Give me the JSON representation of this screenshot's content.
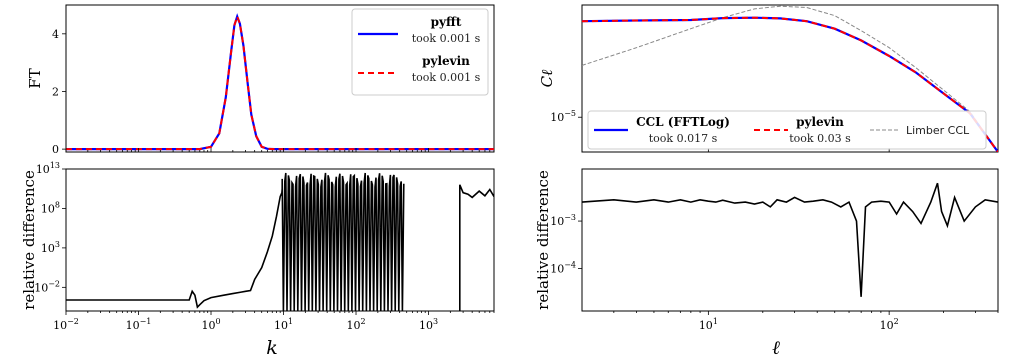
{
  "chart_data": [
    {
      "panel": "top-left",
      "type": "line",
      "ylabel": "FT",
      "xscale": "log",
      "xlim": [
        0.01,
        8000
      ],
      "ylim": [
        -0.1,
        5.0
      ],
      "yticks": [
        "0",
        "2",
        "4"
      ],
      "legend_position": "top-right",
      "series": [
        {
          "name": "pyfft",
          "note": "took 0.001 s",
          "color": "#0000ff",
          "style": "solid"
        },
        {
          "name": "pylevin",
          "note": "took 0.001 s",
          "color": "#ff0000",
          "style": "dashed"
        }
      ],
      "x": [
        0.7,
        1.0,
        1.3,
        1.6,
        1.9,
        2.1,
        2.3,
        2.5,
        2.8,
        3.2,
        3.6,
        4.2,
        5.0,
        6.0,
        7.5
      ],
      "y": [
        0.0,
        0.08,
        0.55,
        1.8,
        3.4,
        4.3,
        4.6,
        4.35,
        3.6,
        2.3,
        1.2,
        0.45,
        0.08,
        0.01,
        0.0
      ]
    },
    {
      "panel": "bottom-left",
      "type": "line",
      "ylabel": "relative difference",
      "xlabel": "k",
      "xscale": "log",
      "yscale": "log",
      "xlim": [
        0.01,
        8000
      ],
      "ylim_log10": [
        -5,
        13
      ],
      "xticks": [
        "10−2",
        "10−1",
        "100",
        "101",
        "102",
        "103"
      ],
      "yticks": [
        "1013",
        "108",
        "103",
        "10−2"
      ],
      "series": [
        {
          "name": "",
          "color": "#000000"
        }
      ],
      "x": [
        0.01,
        0.5,
        0.55,
        0.6,
        0.65,
        0.7,
        0.8,
        1.0,
        1.5,
        2.0,
        2.6,
        3.0,
        3.5,
        4.0,
        5.0,
        6.0,
        7.0,
        8.0,
        9.0,
        9.5,
        9.6
      ],
      "y_log10": [
        -3.6,
        -3.6,
        -2.5,
        -3.0,
        -4.5,
        -4.2,
        -3.7,
        -3.3,
        -3.0,
        -2.8,
        -2.6,
        -2.5,
        -2.4,
        -1.0,
        0.5,
        2.5,
        4.5,
        7.0,
        9.5,
        10.0,
        10.5
      ],
      "spike_region": {
        "x_from": 9.6,
        "x_to": 420,
        "peak_log10": [
          11.0,
          12.5
        ],
        "floor_log10": -5
      },
      "tail": {
        "x": [
          2700,
          3000,
          3500,
          4000,
          5000,
          6000,
          7000,
          8000
        ],
        "y_log10": [
          11.0,
          10.0,
          9.8,
          9.4,
          10.2,
          9.6,
          10.4,
          9.5
        ]
      }
    },
    {
      "panel": "top-right",
      "type": "line",
      "ylabel": "Cℓ",
      "xscale": "log",
      "yscale": "log",
      "xlim": [
        2,
        400
      ],
      "ylim": [
        2e-06,
        0.0018
      ],
      "yticks": [
        "10−5"
      ],
      "legend_position": "bottom",
      "series": [
        {
          "name": "CCL (FFTLog)",
          "note": "took 0.017 s",
          "color": "#0000ff",
          "style": "solid"
        },
        {
          "name": "pylevin",
          "note": "took 0.03 s",
          "color": "#ff0000",
          "style": "dashed"
        },
        {
          "name": "Limber CCL",
          "note": "",
          "color": "#888888",
          "style": "dashed"
        }
      ],
      "x": [
        2,
        4,
        8,
        12,
        18,
        25,
        35,
        50,
        70,
        100,
        140,
        200,
        280,
        400
      ],
      "ccl": [
        0.00085,
        0.00088,
        0.0009,
        0.00098,
        0.001,
        0.00097,
        0.00085,
        0.0006,
        0.00035,
        0.00017,
        8e-05,
        3e-05,
        1.2e-05,
        2e-06
      ],
      "limber": [
        0.00011,
        0.00025,
        0.0006,
        0.001,
        0.0015,
        0.0017,
        0.0016,
        0.0011,
        0.00055,
        0.00025,
        0.0001,
        3.5e-05,
        1.3e-05,
        2e-06
      ]
    },
    {
      "panel": "bottom-right",
      "type": "line",
      "ylabel": "relative difference",
      "xlabel": "ℓ",
      "xscale": "log",
      "yscale": "log",
      "xlim": [
        2,
        400
      ],
      "ylim_log10": [
        -4.9,
        -1.9
      ],
      "xticks": [
        "101",
        "102"
      ],
      "yticks": [
        "10−3",
        "10−4"
      ],
      "series": [
        {
          "name": "",
          "color": "#000000"
        }
      ],
      "x": [
        2,
        3,
        4,
        5,
        6,
        7,
        8,
        9,
        10,
        11,
        12,
        14,
        16,
        18,
        20,
        22,
        24,
        27,
        30,
        34,
        38,
        43,
        48,
        54,
        60,
        66,
        70,
        74,
        80,
        90,
        100,
        110,
        120,
        135,
        150,
        170,
        185,
        195,
        210,
        230,
        260,
        300,
        340,
        400
      ],
      "y_log10": [
        -2.6,
        -2.55,
        -2.6,
        -2.55,
        -2.6,
        -2.55,
        -2.6,
        -2.55,
        -2.58,
        -2.6,
        -2.56,
        -2.62,
        -2.6,
        -2.64,
        -2.6,
        -2.7,
        -2.55,
        -2.6,
        -2.5,
        -2.6,
        -2.58,
        -2.55,
        -2.6,
        -2.7,
        -2.6,
        -3.0,
        -4.6,
        -2.7,
        -2.6,
        -2.58,
        -2.6,
        -2.85,
        -2.6,
        -2.8,
        -3.05,
        -2.6,
        -2.2,
        -2.8,
        -3.1,
        -2.5,
        -3.0,
        -2.7,
        -2.55,
        -2.6
      ]
    }
  ]
}
